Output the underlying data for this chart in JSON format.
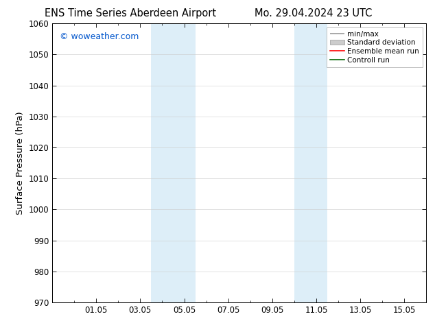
{
  "title_left": "ENS Time Series Aberdeen Airport",
  "title_right": "Mo. 29.04.2024 23 UTC",
  "ylabel": "Surface Pressure (hPa)",
  "ylim": [
    970,
    1060
  ],
  "yticks": [
    970,
    980,
    990,
    1000,
    1010,
    1020,
    1030,
    1040,
    1050,
    1060
  ],
  "xtick_labels": [
    "01.05",
    "03.05",
    "05.05",
    "07.05",
    "09.05",
    "11.05",
    "13.05",
    "15.05"
  ],
  "xtick_positions": [
    2,
    4,
    6,
    8,
    10,
    12,
    14,
    16
  ],
  "xlim": [
    0,
    17
  ],
  "shaded_bands": [
    {
      "x_start": 4.5,
      "x_end": 6.5
    },
    {
      "x_start": 11.0,
      "x_end": 12.5
    }
  ],
  "shaded_color": "#ddeef8",
  "watermark_text": "© woweather.com",
  "watermark_color": "#0055cc",
  "bg_color": "#ffffff",
  "plot_bg_color": "#ffffff",
  "grid_color": "#cccccc",
  "spine_color": "#000000",
  "title_fontsize": 10.5,
  "tick_fontsize": 8.5,
  "label_fontsize": 9.5,
  "legend_fontsize": 7.5
}
